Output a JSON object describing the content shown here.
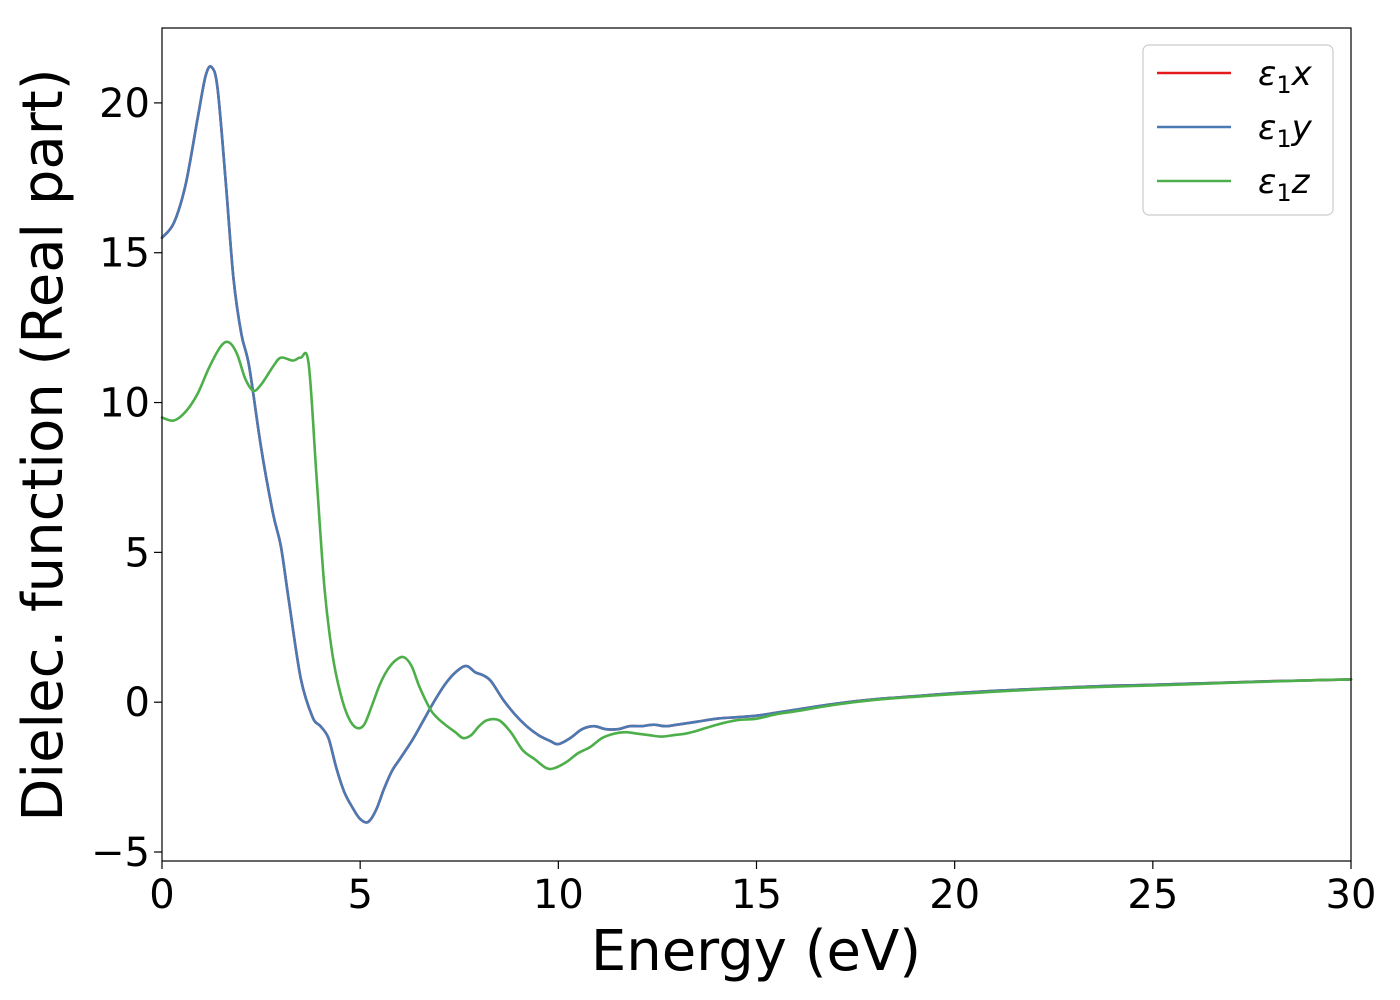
{
  "chart_data": {
    "type": "line",
    "xlabel": "Energy (eV)",
    "ylabel": "Dielec. function (Real part)",
    "xlim": [
      0,
      30
    ],
    "ylim": [
      -5.3,
      22.5
    ],
    "x_ticks": [
      0,
      5,
      10,
      15,
      20,
      25,
      30
    ],
    "y_ticks": [
      -5,
      0,
      5,
      10,
      15,
      20
    ],
    "x_tick_labels": [
      "0",
      "5",
      "10",
      "15",
      "20",
      "25",
      "30"
    ],
    "y_tick_labels": [
      "−5",
      "0",
      "5",
      "10",
      "15",
      "20"
    ],
    "grid": false,
    "legend_position": "top-right",
    "series": [
      {
        "name": "ε1x",
        "symbol": "ε",
        "subscript": "1",
        "component": "x",
        "color": "#e41a1c",
        "x": [
          0,
          0.3,
          0.6,
          0.9,
          1.1,
          1.25,
          1.4,
          1.6,
          1.8,
          2.0,
          2.2,
          2.5,
          2.8,
          3.0,
          3.2,
          3.5,
          3.8,
          4.0,
          4.2,
          4.4,
          4.6,
          4.8,
          5.0,
          5.2,
          5.4,
          5.6,
          5.8,
          6.0,
          6.3,
          6.6,
          6.9,
          7.2,
          7.5,
          7.7,
          7.9,
          8.1,
          8.3,
          8.6,
          8.9,
          9.2,
          9.5,
          9.8,
          10.0,
          10.3,
          10.6,
          10.9,
          11.2,
          11.5,
          11.8,
          12.1,
          12.4,
          12.7,
          13.0,
          13.5,
          14.0,
          14.5,
          15.0,
          15.5,
          16.0,
          17.0,
          18.0,
          19.0,
          20.0,
          21.0,
          22.0,
          23.0,
          24.0,
          25.0,
          26.0,
          27.0,
          28.0,
          29.0,
          30.0
        ],
        "y": [
          15.5,
          16.0,
          17.3,
          19.5,
          20.9,
          21.2,
          20.5,
          17.5,
          14.2,
          12.3,
          11.2,
          8.5,
          6.3,
          5.2,
          3.4,
          0.8,
          -0.5,
          -0.8,
          -1.2,
          -2.2,
          -3.0,
          -3.5,
          -3.9,
          -4.0,
          -3.6,
          -2.9,
          -2.3,
          -1.9,
          -1.3,
          -0.6,
          0.1,
          0.7,
          1.1,
          1.2,
          1.0,
          0.9,
          0.7,
          0.1,
          -0.4,
          -0.8,
          -1.1,
          -1.3,
          -1.4,
          -1.2,
          -0.9,
          -0.8,
          -0.9,
          -0.9,
          -0.8,
          -0.8,
          -0.75,
          -0.8,
          -0.75,
          -0.65,
          -0.55,
          -0.5,
          -0.45,
          -0.35,
          -0.25,
          -0.05,
          0.1,
          0.2,
          0.3,
          0.38,
          0.44,
          0.5,
          0.55,
          0.58,
          0.62,
          0.66,
          0.7,
          0.73,
          0.76
        ]
      },
      {
        "name": "ε1y",
        "symbol": "ε",
        "subscript": "1",
        "component": "y",
        "color": "#4a7ab4",
        "x": [
          0,
          0.3,
          0.6,
          0.9,
          1.1,
          1.25,
          1.4,
          1.6,
          1.8,
          2.0,
          2.2,
          2.5,
          2.8,
          3.0,
          3.2,
          3.5,
          3.8,
          4.0,
          4.2,
          4.4,
          4.6,
          4.8,
          5.0,
          5.2,
          5.4,
          5.6,
          5.8,
          6.0,
          6.3,
          6.6,
          6.9,
          7.2,
          7.5,
          7.7,
          7.9,
          8.1,
          8.3,
          8.6,
          8.9,
          9.2,
          9.5,
          9.8,
          10.0,
          10.3,
          10.6,
          10.9,
          11.2,
          11.5,
          11.8,
          12.1,
          12.4,
          12.7,
          13.0,
          13.5,
          14.0,
          14.5,
          15.0,
          15.5,
          16.0,
          17.0,
          18.0,
          19.0,
          20.0,
          21.0,
          22.0,
          23.0,
          24.0,
          25.0,
          26.0,
          27.0,
          28.0,
          29.0,
          30.0
        ],
        "y": [
          15.5,
          16.0,
          17.3,
          19.5,
          20.9,
          21.2,
          20.5,
          17.5,
          14.2,
          12.3,
          11.2,
          8.5,
          6.3,
          5.2,
          3.4,
          0.8,
          -0.5,
          -0.8,
          -1.2,
          -2.2,
          -3.0,
          -3.5,
          -3.9,
          -4.0,
          -3.6,
          -2.9,
          -2.3,
          -1.9,
          -1.3,
          -0.6,
          0.1,
          0.7,
          1.1,
          1.2,
          1.0,
          0.9,
          0.7,
          0.1,
          -0.4,
          -0.8,
          -1.1,
          -1.3,
          -1.4,
          -1.2,
          -0.9,
          -0.8,
          -0.9,
          -0.9,
          -0.8,
          -0.8,
          -0.75,
          -0.8,
          -0.75,
          -0.65,
          -0.55,
          -0.5,
          -0.45,
          -0.35,
          -0.25,
          -0.05,
          0.1,
          0.2,
          0.3,
          0.38,
          0.44,
          0.5,
          0.55,
          0.58,
          0.62,
          0.66,
          0.7,
          0.73,
          0.76
        ]
      },
      {
        "name": "ε1z",
        "symbol": "ε",
        "subscript": "1",
        "component": "z",
        "color": "#4daf4a",
        "x": [
          0,
          0.3,
          0.6,
          0.9,
          1.2,
          1.5,
          1.7,
          1.9,
          2.1,
          2.3,
          2.5,
          2.8,
          3.0,
          3.3,
          3.5,
          3.7,
          3.9,
          4.1,
          4.3,
          4.5,
          4.7,
          4.9,
          5.1,
          5.3,
          5.5,
          5.7,
          5.9,
          6.1,
          6.3,
          6.5,
          6.8,
          7.1,
          7.4,
          7.6,
          7.8,
          8.0,
          8.2,
          8.5,
          8.8,
          9.1,
          9.4,
          9.7,
          9.9,
          10.2,
          10.5,
          10.8,
          11.1,
          11.4,
          11.7,
          12.0,
          12.3,
          12.6,
          12.9,
          13.2,
          13.5,
          14.0,
          14.5,
          15.0,
          15.5,
          16.0,
          17.0,
          18.0,
          19.0,
          20.0,
          21.0,
          22.0,
          23.0,
          24.0,
          25.0,
          26.0,
          27.0,
          28.0,
          29.0,
          30.0
        ],
        "y": [
          9.5,
          9.4,
          9.7,
          10.3,
          11.2,
          11.9,
          12.0,
          11.6,
          10.8,
          10.4,
          10.6,
          11.2,
          11.5,
          11.4,
          11.5,
          11.3,
          7.5,
          3.8,
          1.6,
          0.3,
          -0.5,
          -0.85,
          -0.75,
          -0.1,
          0.6,
          1.1,
          1.4,
          1.5,
          1.2,
          0.5,
          -0.3,
          -0.7,
          -1.0,
          -1.2,
          -1.1,
          -0.8,
          -0.6,
          -0.6,
          -1.0,
          -1.6,
          -1.9,
          -2.2,
          -2.2,
          -2.0,
          -1.7,
          -1.5,
          -1.2,
          -1.05,
          -1.0,
          -1.05,
          -1.1,
          -1.15,
          -1.1,
          -1.05,
          -0.95,
          -0.75,
          -0.6,
          -0.55,
          -0.4,
          -0.3,
          -0.08,
          0.08,
          0.18,
          0.27,
          0.35,
          0.42,
          0.48,
          0.52,
          0.56,
          0.6,
          0.65,
          0.69,
          0.73,
          0.76
        ]
      }
    ]
  }
}
